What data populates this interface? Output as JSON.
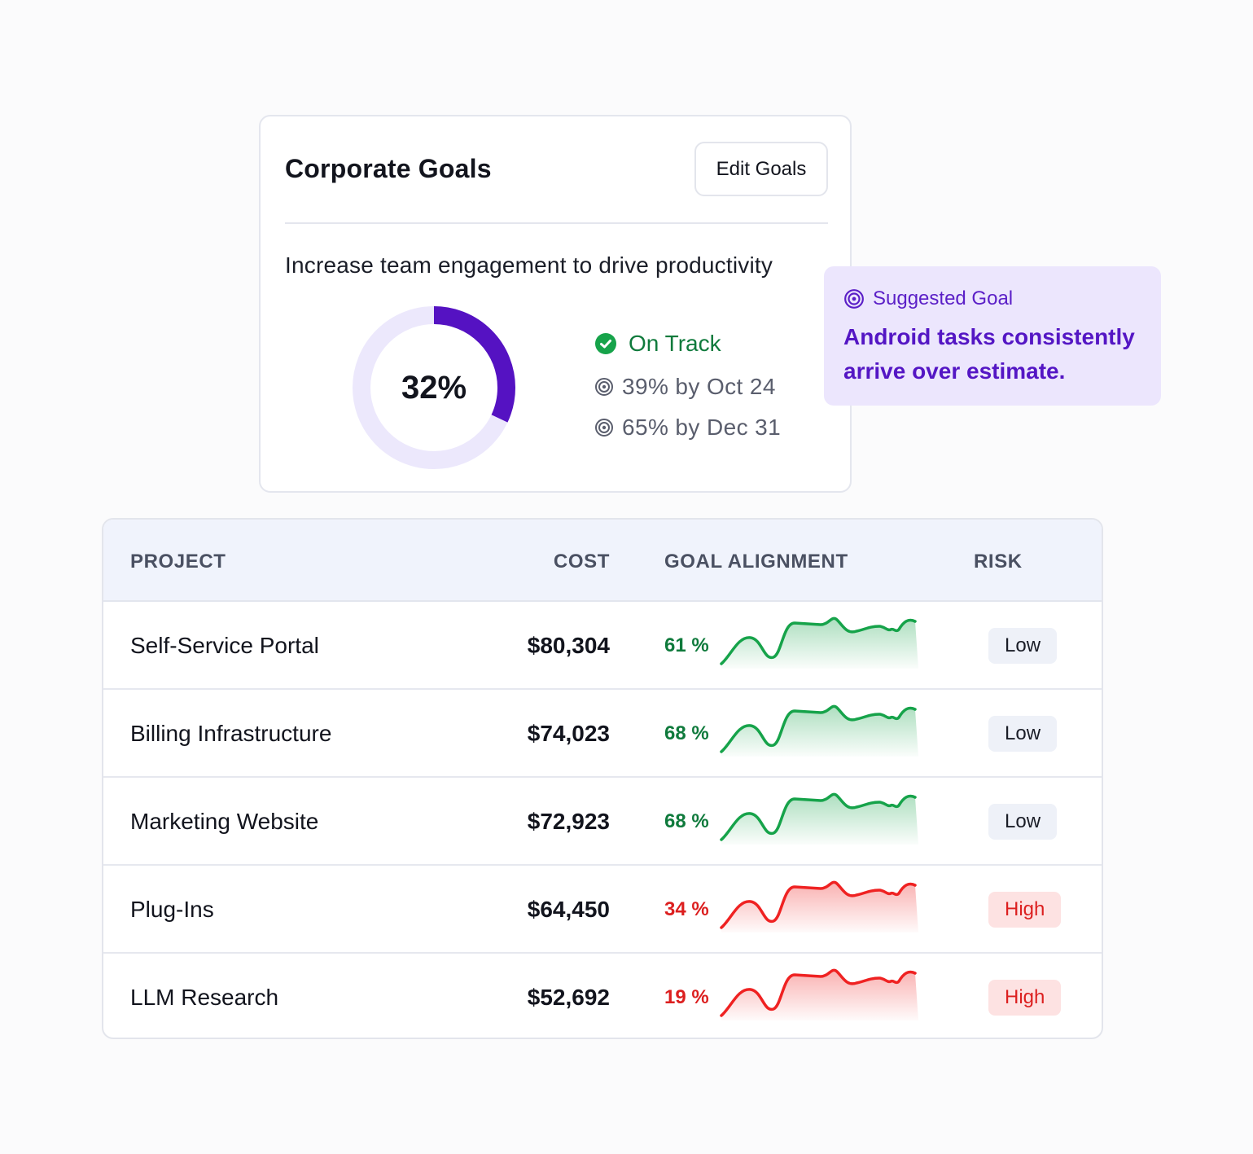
{
  "goals_card": {
    "title": "Corporate Goals",
    "edit_label": "Edit Goals",
    "statement": "Increase team engagement to drive productivity",
    "progress": 0.32,
    "progress_label": "32%",
    "status": "On Track",
    "milestones": [
      "39% by Oct 24",
      "65% by Dec 31"
    ],
    "icons": {
      "status": "check-circle-icon",
      "milestone": "target-icon"
    }
  },
  "suggested": {
    "heading": "Suggested Goal",
    "body": "Android tasks consistently arrive over estimate.",
    "icon": "target-icon"
  },
  "table": {
    "headers": {
      "project": "PROJECT",
      "cost": "COST",
      "alignment": "GOAL ALIGNMENT",
      "risk": "RISK"
    },
    "rows": [
      {
        "project": "Self-Service Portal",
        "cost": "$80,304",
        "alignment": "61 %",
        "risk": "Low",
        "trend": "positive"
      },
      {
        "project": "Billing Infrastructure",
        "cost": "$74,023",
        "alignment": "68 %",
        "risk": "Low",
        "trend": "positive"
      },
      {
        "project": "Marketing Website",
        "cost": "$72,923",
        "alignment": "68 %",
        "risk": "Low",
        "trend": "positive"
      },
      {
        "project": "Plug-Ins",
        "cost": "$64,450",
        "alignment": "34 %",
        "risk": "High",
        "trend": "negative"
      },
      {
        "project": "LLM Research",
        "cost": "$52,692",
        "alignment": "19 %",
        "risk": "High",
        "trend": "negative"
      }
    ]
  },
  "colors": {
    "accent_purple": "#5512c2",
    "donut_track": "#ece8fc",
    "positive": "#16a34a",
    "positive_text": "#0f7a3c",
    "negative": "#ef2222",
    "negative_text": "#dc1f1f",
    "low_bg": "#eef1f8",
    "high_bg": "#fde2e2"
  }
}
